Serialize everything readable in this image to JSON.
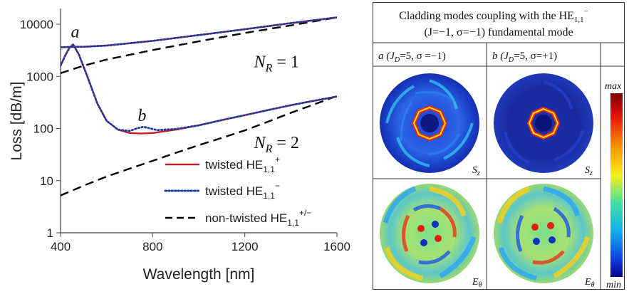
{
  "chart_data": {
    "type": "line",
    "xlabel": "Wavelength [nm]",
    "ylabel": "Loss [dB/m]",
    "xlim": [
      400,
      1600
    ],
    "ylim": [
      1,
      20000
    ],
    "yscale": "log",
    "x_ticks": [
      "400",
      "800",
      "1200",
      "1600"
    ],
    "y_ticks": [
      "1",
      "10",
      "100",
      "1000",
      "10000"
    ],
    "grid": false,
    "legend_position": "bottom-right",
    "legend": {
      "twisted_plus": {
        "text": "twisted HE",
        "sub": "1,1",
        "sup": "+"
      },
      "twisted_minus": {
        "text": "twisted HE",
        "sub": "1,1",
        "sup": "−"
      },
      "nontwisted": {
        "text": "non-twisted HE",
        "sub": "1,1",
        "sup": "+/−"
      }
    },
    "annotations": {
      "a": "a",
      "b": "b"
    },
    "nr_labels": {
      "nr1": {
        "main": "N",
        "sub": "R",
        "rest": " = 1"
      },
      "nr2": {
        "main": "N",
        "sub": "R",
        "rest": " = 2"
      }
    },
    "series": [
      {
        "key": "twisted_plus_NR1",
        "color": "#c0202a",
        "style": "solid",
        "x": [
          400,
          430,
          455,
          480,
          500,
          600,
          800,
          1000,
          1200,
          1400,
          1600
        ],
        "y": [
          3600,
          3650,
          3700,
          3700,
          3700,
          3900,
          4800,
          6200,
          8000,
          10500,
          13500
        ]
      },
      {
        "key": "twisted_minus_NR1",
        "color": "#1f3a9e",
        "style": "dotted",
        "x": [
          400,
          430,
          455,
          480,
          500,
          600,
          800,
          1000,
          1200,
          1400,
          1600
        ],
        "y": [
          3600,
          3650,
          3700,
          3700,
          3700,
          3900,
          4800,
          6200,
          8000,
          10500,
          13500
        ]
      },
      {
        "key": "nontwisted_NR1",
        "color": "#000000",
        "style": "dashed",
        "x": [
          400,
          500,
          600,
          800,
          1000,
          1200,
          1400,
          1600
        ],
        "y": [
          1150,
          1600,
          2100,
          3200,
          4700,
          6800,
          9500,
          13500
        ]
      },
      {
        "key": "twisted_plus_NR2",
        "color": "#c0202a",
        "style": "solid",
        "x": [
          400,
          420,
          440,
          455,
          480,
          520,
          560,
          600,
          650,
          700,
          750,
          800,
          900,
          1000,
          1100,
          1200,
          1300,
          1400,
          1500,
          1600
        ],
        "y": [
          1600,
          2500,
          3600,
          4100,
          2600,
          900,
          300,
          140,
          95,
          82,
          80,
          82,
          95,
          115,
          145,
          180,
          225,
          280,
          340,
          410
        ]
      },
      {
        "key": "twisted_minus_NR2",
        "color": "#1f3a9e",
        "style": "dotted",
        "x": [
          400,
          420,
          440,
          455,
          480,
          520,
          560,
          600,
          650,
          700,
          730,
          760,
          790,
          820,
          900,
          1000,
          1100,
          1200,
          1300,
          1400,
          1500,
          1600
        ],
        "y": [
          1600,
          2500,
          3600,
          4100,
          2600,
          900,
          300,
          140,
          95,
          90,
          100,
          108,
          100,
          93,
          98,
          115,
          145,
          180,
          225,
          280,
          340,
          410
        ]
      },
      {
        "key": "nontwisted_NR2",
        "color": "#000000",
        "style": "dashed",
        "x": [
          400,
          500,
          600,
          700,
          800,
          900,
          1000,
          1100,
          1200,
          1300,
          1400,
          1500,
          1600
        ],
        "y": [
          5.2,
          8,
          12,
          17,
          24,
          34,
          48,
          66,
          92,
          135,
          200,
          290,
          420
        ]
      }
    ]
  },
  "panel": {
    "title_line1": "Cladding modes coupling with the HE",
    "title_line1_sub": "1,1",
    "title_line1_sup": "−",
    "title_line2": "(J=−1, σ=−1) fundamental mode",
    "col_a_label": "a (J",
    "col_a_sub": "D",
    "col_a_rest": "=5, σ =−1)",
    "col_b_label": "b (J",
    "col_b_sub": "D",
    "col_b_rest": "=5, σ=+1)",
    "label_sz": "S",
    "label_sz_sub": "z",
    "label_etheta": "E",
    "label_etheta_sub": "θ",
    "colorbar_max": "max",
    "colorbar_min": "min"
  }
}
